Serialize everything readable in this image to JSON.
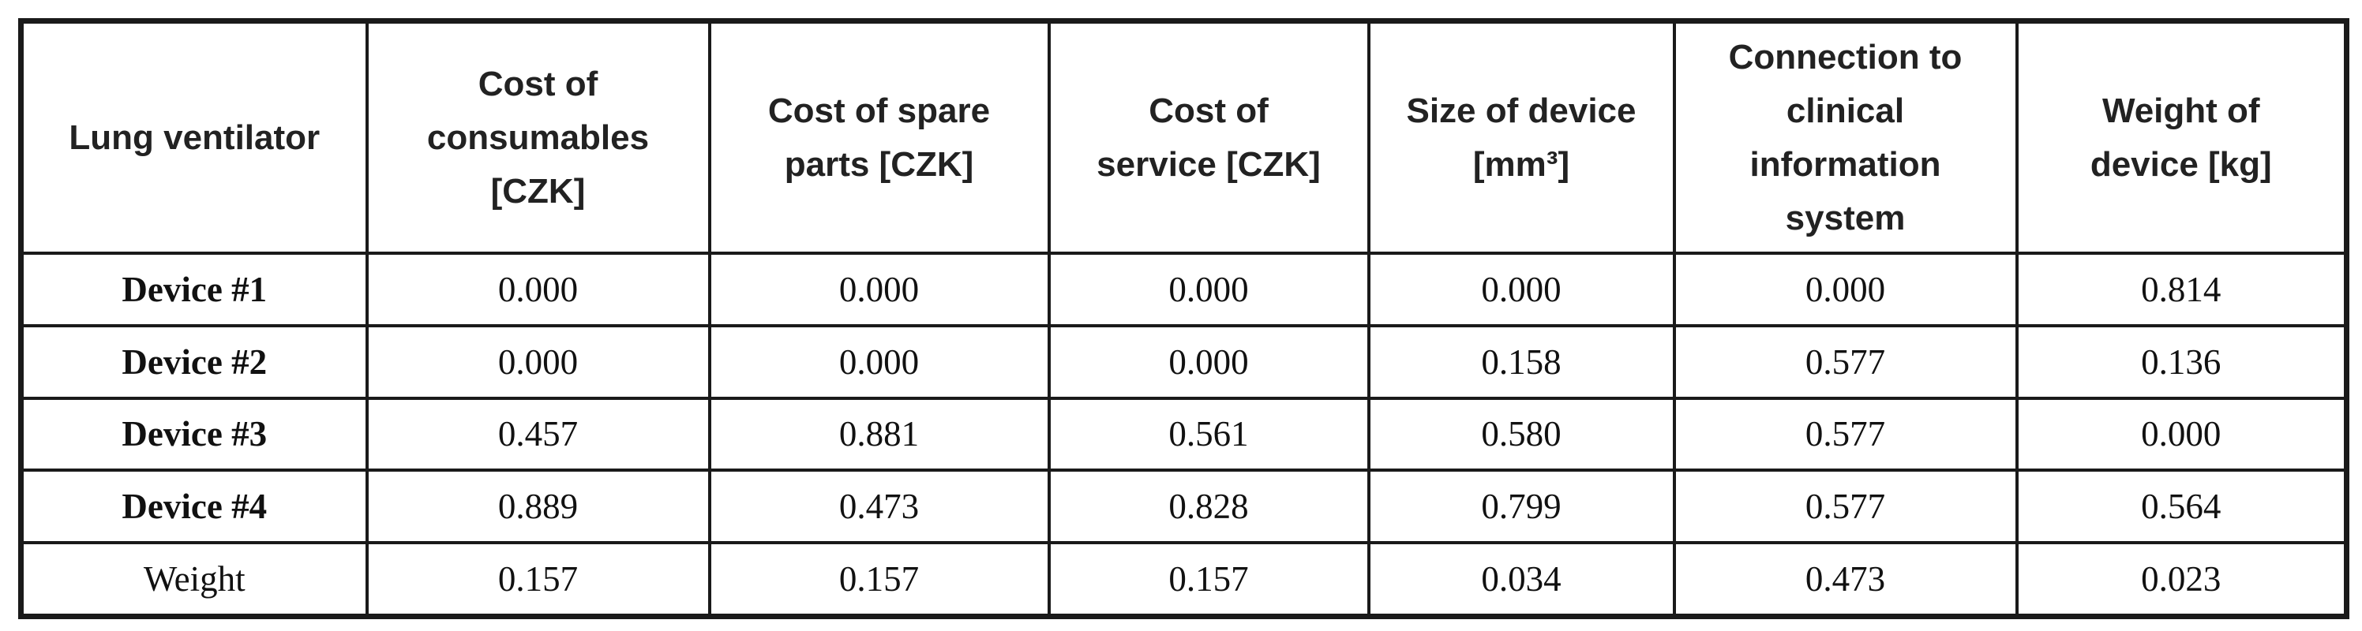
{
  "table": {
    "header": [
      "Lung ventilator",
      "Cost of consumables [CZK]",
      "Cost of spare parts [CZK]",
      "Cost of service [CZK]",
      "Size of device [mm³]",
      "Connection to clinical information system",
      "Weight of device [kg]"
    ],
    "rows": [
      [
        "Device #1",
        "0.000",
        "0.000",
        "0.000",
        "0.000",
        "0.000",
        "0.814"
      ],
      [
        "Device #2",
        "0.000",
        "0.000",
        "0.000",
        "0.158",
        "0.577",
        "0.136"
      ],
      [
        "Device #3",
        "0.457",
        "0.881",
        "0.561",
        "0.580",
        "0.577",
        "0.000"
      ],
      [
        "Device #4",
        "0.889",
        "0.473",
        "0.828",
        "0.799",
        "0.577",
        "0.564"
      ],
      [
        "Weight",
        "0.157",
        "0.157",
        "0.157",
        "0.034",
        "0.473",
        "0.023"
      ]
    ]
  }
}
